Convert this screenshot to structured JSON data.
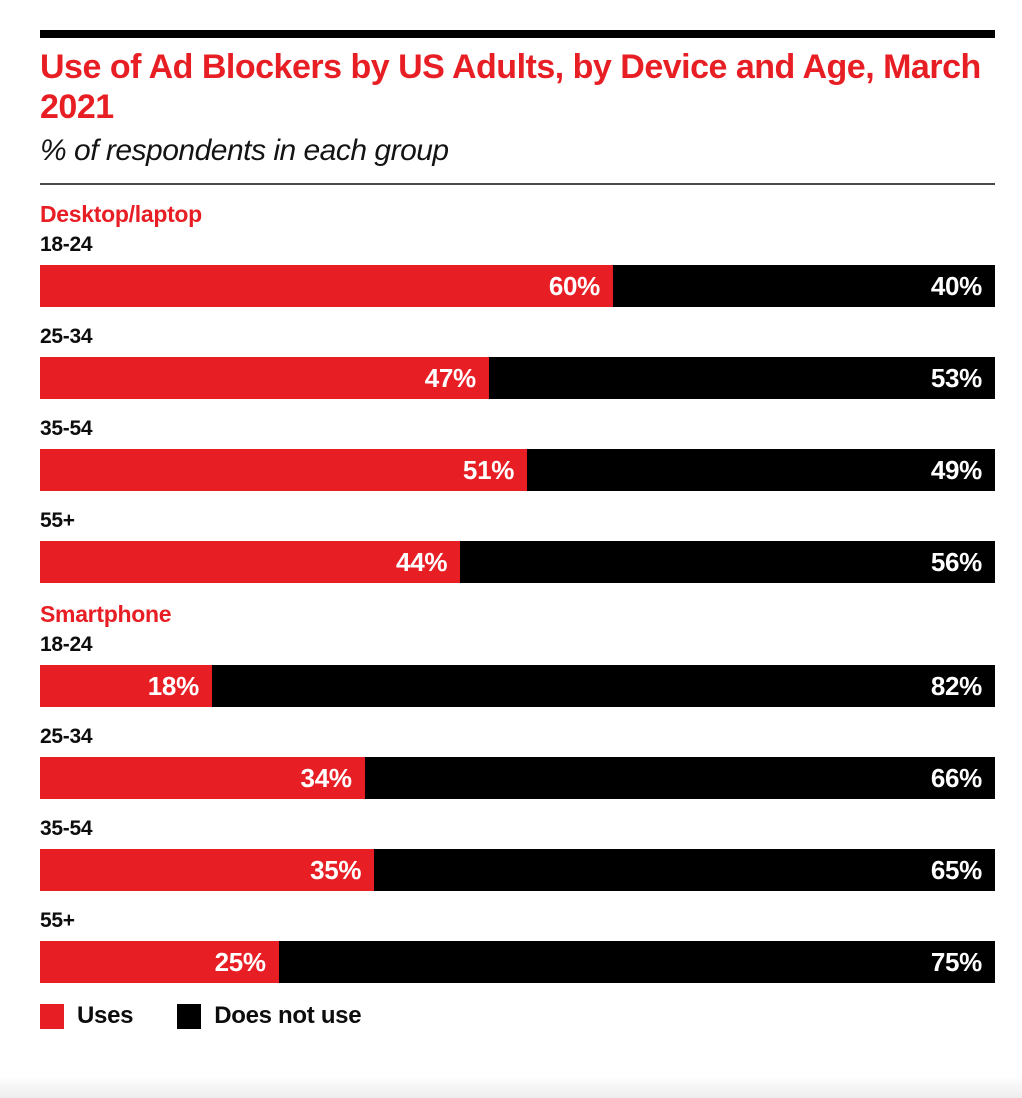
{
  "header": {
    "title": "Use of Ad Blockers by US Adults, by Device and Age, March 2021",
    "subtitle": "% of respondents in each group"
  },
  "colors": {
    "accent_red": "#E81E25",
    "bar_black": "#000000",
    "divider_gray": "#4a4a4a"
  },
  "chart_data": {
    "type": "bar",
    "orientation": "horizontal",
    "stacked": true,
    "unit": "%",
    "xlim": [
      0,
      100
    ],
    "grid": false,
    "legend_position": "bottom",
    "title": "Use of Ad Blockers by US Adults, by Device and Age, March 2021",
    "subtitle": "% of respondents in each group",
    "series": [
      {
        "name": "Uses",
        "color": "#E81E25"
      },
      {
        "name": "Does not use",
        "color": "#000000"
      }
    ],
    "groups": [
      {
        "label": "Desktop/laptop",
        "rows": [
          {
            "category": "18-24",
            "values": [
              60,
              40
            ]
          },
          {
            "category": "25-34",
            "values": [
              47,
              53
            ]
          },
          {
            "category": "35-54",
            "values": [
              51,
              49
            ]
          },
          {
            "category": "55+",
            "values": [
              44,
              56
            ]
          }
        ]
      },
      {
        "label": "Smartphone",
        "rows": [
          {
            "category": "18-24",
            "values": [
              18,
              82
            ]
          },
          {
            "category": "25-34",
            "values": [
              34,
              66
            ]
          },
          {
            "category": "35-54",
            "values": [
              35,
              65
            ]
          },
          {
            "category": "55+",
            "values": [
              25,
              75
            ]
          }
        ]
      }
    ]
  }
}
